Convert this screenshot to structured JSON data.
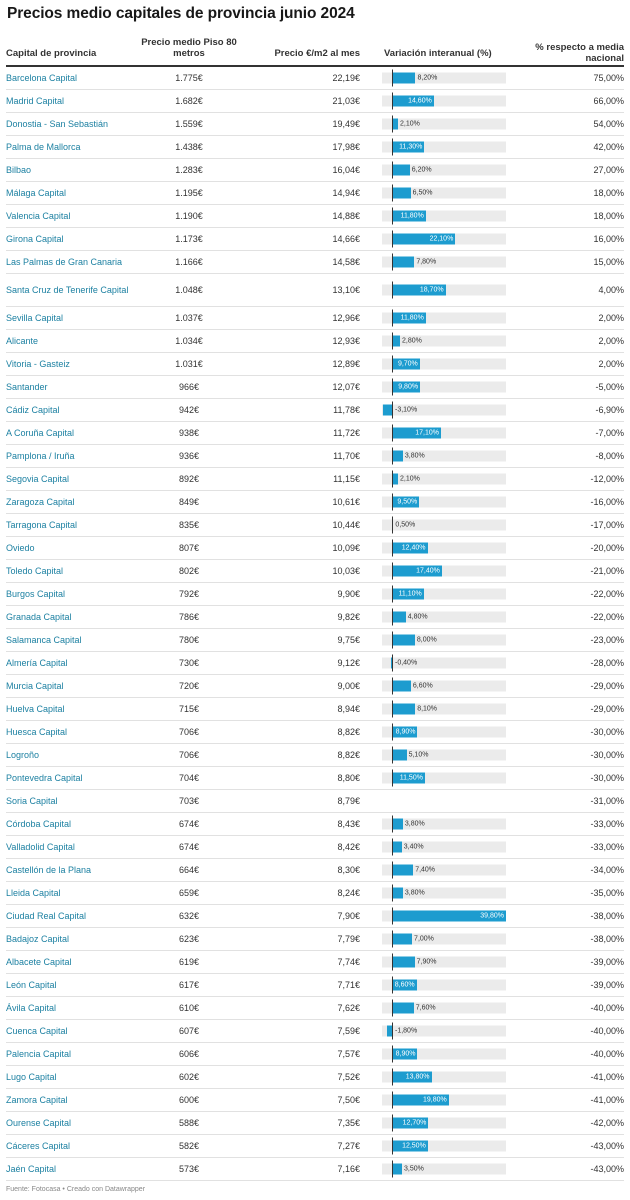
{
  "title": "Precios medio capitales de provincia junio 2024",
  "columns": {
    "city": "Capital de provincia",
    "price80_line1": "Precio medio Piso 80",
    "price80_line2": "metros",
    "price_m2": "Precio €/m2 al mes",
    "variation": "Variación interanual (%)",
    "pct_line1": "% respecto a media",
    "pct_line2": "nacional"
  },
  "footer": "Fuente: Fotocasa • Creado con Datawrapper",
  "colors": {
    "bar": "#1d9ccf",
    "bar_bg": "#ebebeb",
    "link": "#1d81a2"
  },
  "chart_data": {
    "type": "table",
    "variation_range": [
      -3.1,
      39.8
    ],
    "rows": [
      {
        "city": "Barcelona Capital",
        "price80": "1.775€",
        "price_m2": "22,19€",
        "variation": 8.2,
        "variation_label": "8,20%",
        "pct": "75,00%"
      },
      {
        "city": "Madrid Capital",
        "price80": "1.682€",
        "price_m2": "21,03€",
        "variation": 14.6,
        "variation_label": "14,60%",
        "pct": "66,00%"
      },
      {
        "city": "Donostia - San Sebastián",
        "price80": "1.559€",
        "price_m2": "19,49€",
        "variation": 2.1,
        "variation_label": "2,10%",
        "pct": "54,00%"
      },
      {
        "city": "Palma de Mallorca",
        "price80": "1.438€",
        "price_m2": "17,98€",
        "variation": 11.3,
        "variation_label": "11,30%",
        "pct": "42,00%"
      },
      {
        "city": "Bilbao",
        "price80": "1.283€",
        "price_m2": "16,04€",
        "variation": 6.2,
        "variation_label": "6,20%",
        "pct": "27,00%"
      },
      {
        "city": "Málaga Capital",
        "price80": "1.195€",
        "price_m2": "14,94€",
        "variation": 6.5,
        "variation_label": "6,50%",
        "pct": "18,00%"
      },
      {
        "city": "Valencia Capital",
        "price80": "1.190€",
        "price_m2": "14,88€",
        "variation": 11.8,
        "variation_label": "11,80%",
        "pct": "18,00%"
      },
      {
        "city": "Girona Capital",
        "price80": "1.173€",
        "price_m2": "14,66€",
        "variation": 22.1,
        "variation_label": "22,10%",
        "pct": "16,00%"
      },
      {
        "city": "Las Palmas de Gran Canaria",
        "price80": "1.166€",
        "price_m2": "14,58€",
        "variation": 7.8,
        "variation_label": "7,80%",
        "pct": "15,00%"
      },
      {
        "city": "Santa Cruz de Tenerife Capital",
        "price80": "1.048€",
        "price_m2": "13,10€",
        "variation": 18.7,
        "variation_label": "18,70%",
        "pct": "4,00%"
      },
      {
        "city": "Sevilla Capital",
        "price80": "1.037€",
        "price_m2": "12,96€",
        "variation": 11.8,
        "variation_label": "11,80%",
        "pct": "2,00%"
      },
      {
        "city": "Alicante",
        "price80": "1.034€",
        "price_m2": "12,93€",
        "variation": 2.8,
        "variation_label": "2,80%",
        "pct": "2,00%"
      },
      {
        "city": "Vitoria - Gasteiz",
        "price80": "1.031€",
        "price_m2": "12,89€",
        "variation": 9.7,
        "variation_label": "9,70%",
        "pct": "2,00%"
      },
      {
        "city": "Santander",
        "price80": "966€",
        "price_m2": "12,07€",
        "variation": 9.8,
        "variation_label": "9,80%",
        "pct": "-5,00%"
      },
      {
        "city": "Cádiz Capital",
        "price80": "942€",
        "price_m2": "11,78€",
        "variation": -3.1,
        "variation_label": "-3,10%",
        "pct": "-6,90%"
      },
      {
        "city": "A Coruña Capital",
        "price80": "938€",
        "price_m2": "11,72€",
        "variation": 17.1,
        "variation_label": "17,10%",
        "pct": "-7,00%"
      },
      {
        "city": "Pamplona / Iruña",
        "price80": "936€",
        "price_m2": "11,70€",
        "variation": 3.8,
        "variation_label": "3,80%",
        "pct": "-8,00%"
      },
      {
        "city": "Segovia Capital",
        "price80": "892€",
        "price_m2": "11,15€",
        "variation": 2.1,
        "variation_label": "2,10%",
        "pct": "-12,00%"
      },
      {
        "city": "Zaragoza Capital",
        "price80": "849€",
        "price_m2": "10,61€",
        "variation": 9.5,
        "variation_label": "9,50%",
        "pct": "-16,00%"
      },
      {
        "city": "Tarragona Capital",
        "price80": "835€",
        "price_m2": "10,44€",
        "variation": 0.5,
        "variation_label": "0,50%",
        "pct": "-17,00%"
      },
      {
        "city": "Oviedo",
        "price80": "807€",
        "price_m2": "10,09€",
        "variation": 12.4,
        "variation_label": "12,40%",
        "pct": "-20,00%"
      },
      {
        "city": "Toledo Capital",
        "price80": "802€",
        "price_m2": "10,03€",
        "variation": 17.4,
        "variation_label": "17,40%",
        "pct": "-21,00%"
      },
      {
        "city": "Burgos Capital",
        "price80": "792€",
        "price_m2": "9,90€",
        "variation": 11.1,
        "variation_label": "11,10%",
        "pct": "-22,00%"
      },
      {
        "city": "Granada Capital",
        "price80": "786€",
        "price_m2": "9,82€",
        "variation": 4.8,
        "variation_label": "4,80%",
        "pct": "-22,00%"
      },
      {
        "city": "Salamanca Capital",
        "price80": "780€",
        "price_m2": "9,75€",
        "variation": 8.0,
        "variation_label": "8,00%",
        "pct": "-23,00%"
      },
      {
        "city": "Almería Capital",
        "price80": "730€",
        "price_m2": "9,12€",
        "variation": -0.4,
        "variation_label": "-0,40%",
        "pct": "-28,00%"
      },
      {
        "city": "Murcia Capital",
        "price80": "720€",
        "price_m2": "9,00€",
        "variation": 6.6,
        "variation_label": "6,60%",
        "pct": "-29,00%"
      },
      {
        "city": "Huelva Capital",
        "price80": "715€",
        "price_m2": "8,94€",
        "variation": 8.1,
        "variation_label": "8,10%",
        "pct": "-29,00%"
      },
      {
        "city": "Huesca Capital",
        "price80": "706€",
        "price_m2": "8,82€",
        "variation": 8.9,
        "variation_label": "8,90%",
        "pct": "-30,00%"
      },
      {
        "city": "Logroño",
        "price80": "706€",
        "price_m2": "8,82€",
        "variation": 5.1,
        "variation_label": "5,10%",
        "pct": "-30,00%"
      },
      {
        "city": "Pontevedra Capital",
        "price80": "704€",
        "price_m2": "8,80€",
        "variation": 11.5,
        "variation_label": "11,50%",
        "pct": "-30,00%"
      },
      {
        "city": "Soria Capital",
        "price80": "703€",
        "price_m2": "8,79€",
        "variation": null,
        "variation_label": "",
        "pct": "-31,00%"
      },
      {
        "city": "Córdoba Capital",
        "price80": "674€",
        "price_m2": "8,43€",
        "variation": 3.8,
        "variation_label": "3,80%",
        "pct": "-33,00%"
      },
      {
        "city": "Valladolid Capital",
        "price80": "674€",
        "price_m2": "8,42€",
        "variation": 3.4,
        "variation_label": "3,40%",
        "pct": "-33,00%"
      },
      {
        "city": "Castellón de la Plana",
        "price80": "664€",
        "price_m2": "8,30€",
        "variation": 7.4,
        "variation_label": "7,40%",
        "pct": "-34,00%"
      },
      {
        "city": "Lleida Capital",
        "price80": "659€",
        "price_m2": "8,24€",
        "variation": 3.8,
        "variation_label": "3,80%",
        "pct": "-35,00%"
      },
      {
        "city": "Ciudad Real Capital",
        "price80": "632€",
        "price_m2": "7,90€",
        "variation": 39.8,
        "variation_label": "39,80%",
        "pct": "-38,00%"
      },
      {
        "city": "Badajoz Capital",
        "price80": "623€",
        "price_m2": "7,79€",
        "variation": 7.0,
        "variation_label": "7,00%",
        "pct": "-38,00%"
      },
      {
        "city": "Albacete Capital",
        "price80": "619€",
        "price_m2": "7,74€",
        "variation": 7.9,
        "variation_label": "7,90%",
        "pct": "-39,00%"
      },
      {
        "city": "León Capital",
        "price80": "617€",
        "price_m2": "7,71€",
        "variation": 8.6,
        "variation_label": "8,60%",
        "pct": "-39,00%"
      },
      {
        "city": "Ávila Capital",
        "price80": "610€",
        "price_m2": "7,62€",
        "variation": 7.6,
        "variation_label": "7,60%",
        "pct": "-40,00%"
      },
      {
        "city": "Cuenca Capital",
        "price80": "607€",
        "price_m2": "7,59€",
        "variation": -1.8,
        "variation_label": "-1,80%",
        "pct": "-40,00%"
      },
      {
        "city": "Palencia Capital",
        "price80": "606€",
        "price_m2": "7,57€",
        "variation": 8.9,
        "variation_label": "8,90%",
        "pct": "-40,00%"
      },
      {
        "city": "Lugo Capital",
        "price80": "602€",
        "price_m2": "7,52€",
        "variation": 13.8,
        "variation_label": "13,80%",
        "pct": "-41,00%"
      },
      {
        "city": "Zamora Capital",
        "price80": "600€",
        "price_m2": "7,50€",
        "variation": 19.8,
        "variation_label": "19,80%",
        "pct": "-41,00%"
      },
      {
        "city": "Ourense Capital",
        "price80": "588€",
        "price_m2": "7,35€",
        "variation": 12.7,
        "variation_label": "12,70%",
        "pct": "-42,00%"
      },
      {
        "city": "Cáceres Capital",
        "price80": "582€",
        "price_m2": "7,27€",
        "variation": 12.5,
        "variation_label": "12,50%",
        "pct": "-43,00%"
      },
      {
        "city": "Jaén Capital",
        "price80": "573€",
        "price_m2": "7,16€",
        "variation": 3.5,
        "variation_label": "3,50%",
        "pct": "-43,00%"
      }
    ]
  }
}
